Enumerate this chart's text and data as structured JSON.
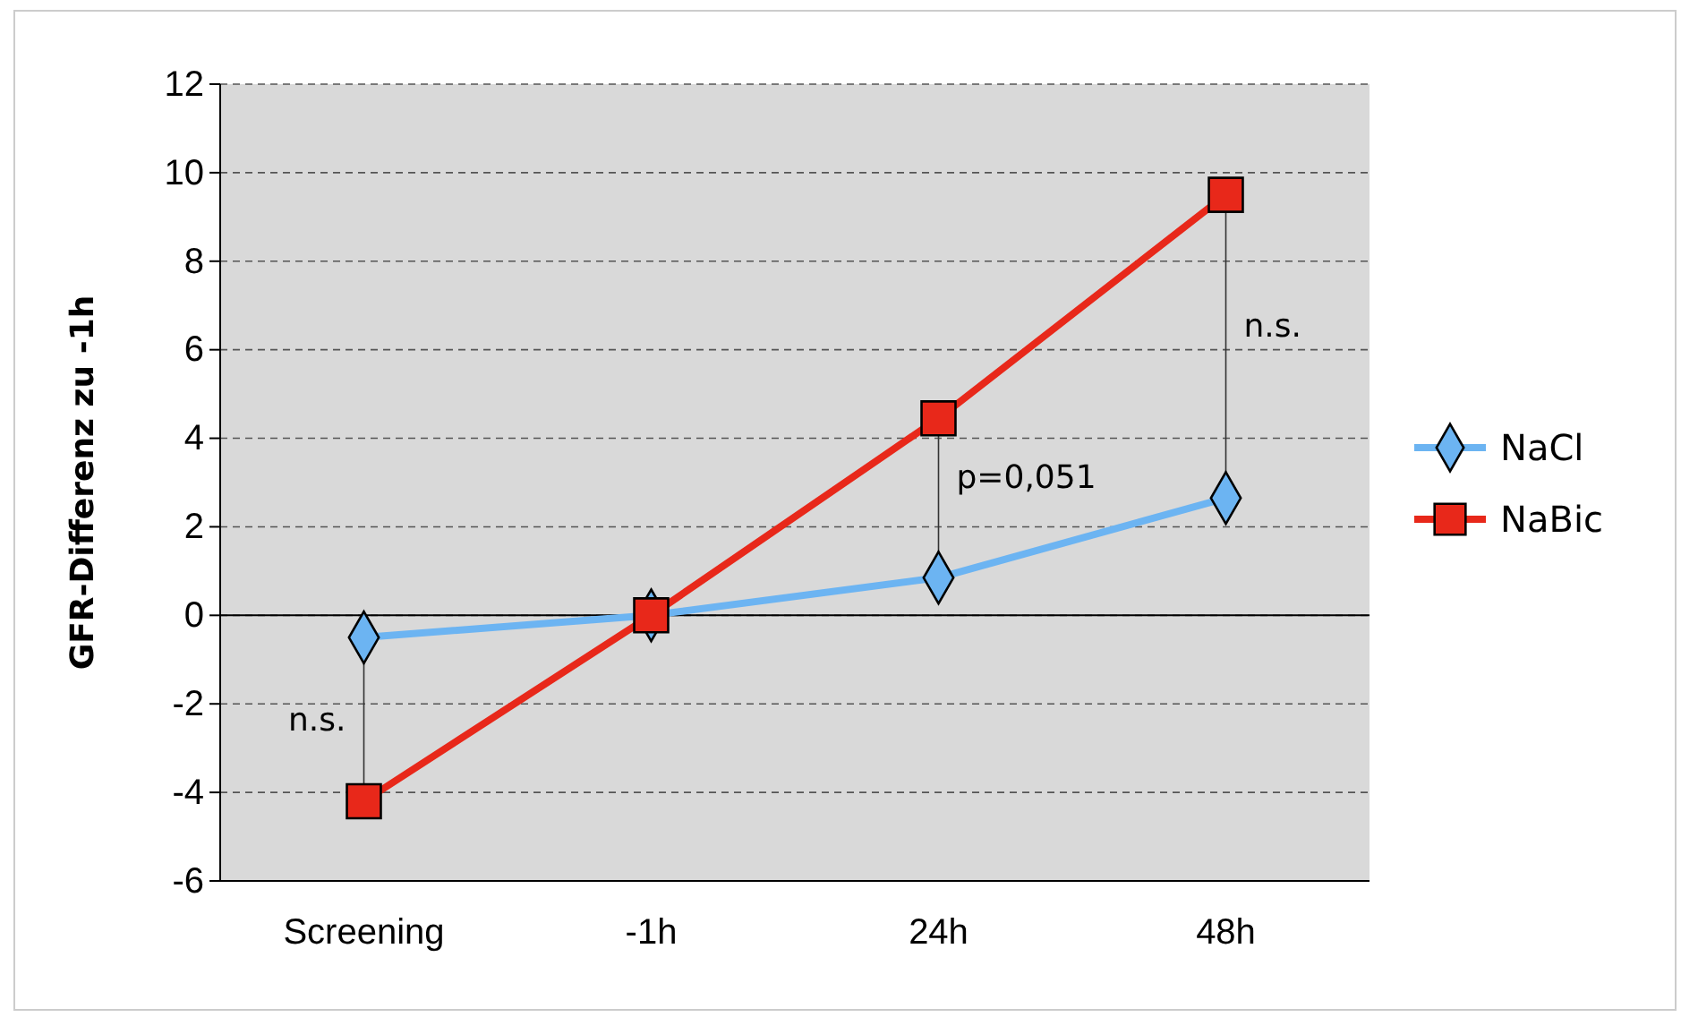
{
  "chart_data": {
    "type": "line",
    "ylabel": "GFR-Differenz zu -1h",
    "categories": [
      "Screening",
      "-1h",
      "24h",
      "48h"
    ],
    "series": [
      {
        "name": "NaCl",
        "color": "#6cb4f2",
        "marker": "diamond",
        "values": [
          -0.5,
          0,
          0.85,
          2.65
        ]
      },
      {
        "name": "NaBic",
        "color": "#e8281a",
        "marker": "square",
        "values": [
          -4.2,
          0,
          4.45,
          9.5
        ]
      }
    ],
    "ylim": [
      -6,
      12
    ],
    "yticks": [
      -6,
      -4,
      -2,
      0,
      2,
      4,
      6,
      8,
      10,
      12
    ],
    "grid": "y",
    "legend": "right",
    "line_style": "solid",
    "annotations": [
      "n.s.",
      "p=0,051",
      "n.s."
    ]
  }
}
